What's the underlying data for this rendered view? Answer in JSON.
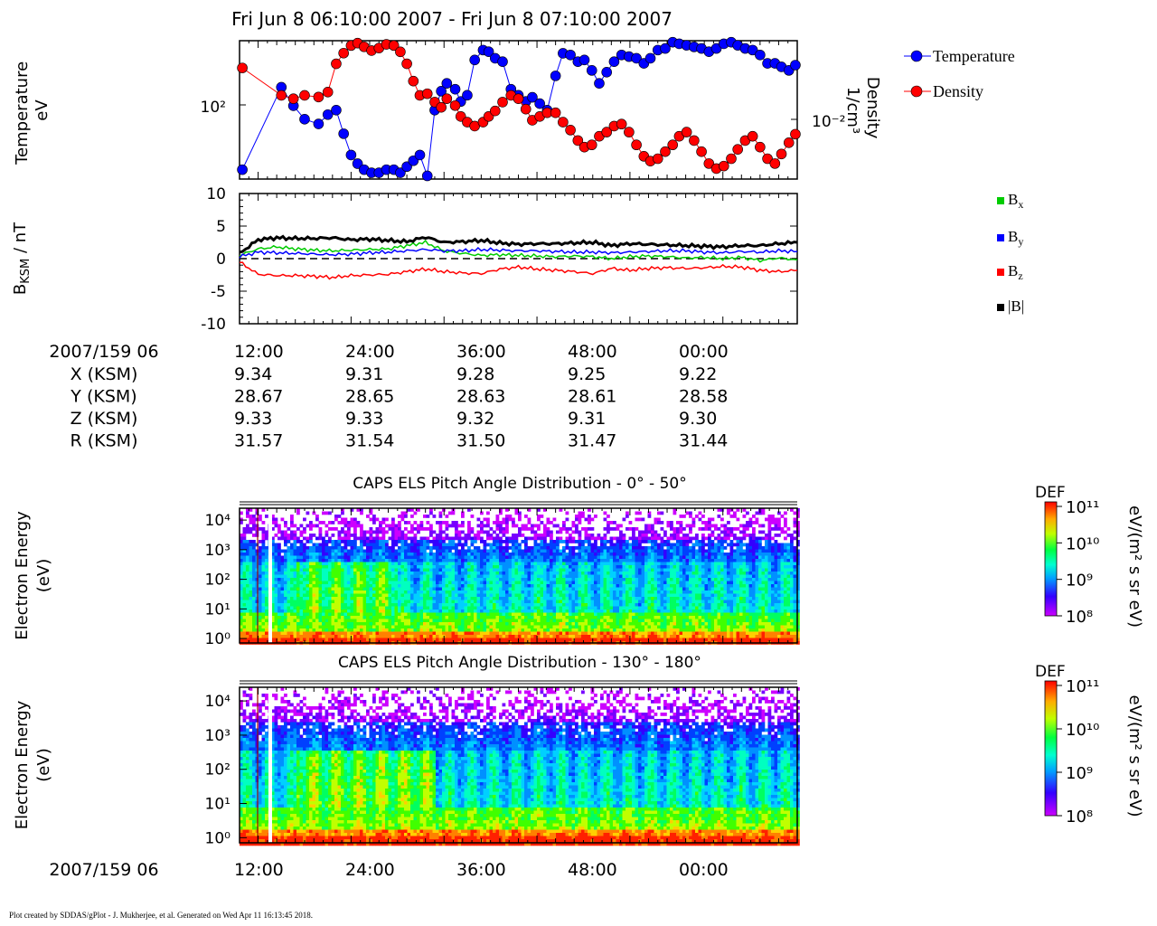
{
  "header": {
    "title": "Fri Jun 8 06:10:00 2007 - Fri Jun 8 07:10:00 2007"
  },
  "footer": {
    "text": "Plot created by SDDAS/gPlot - J. Mukherjee, et al.  Generated on Wed Apr 11 16:13:45 2018."
  },
  "ephemeris": {
    "epoch_label": "2007/159 06",
    "tick_labels": [
      "12:00",
      "24:00",
      "36:00",
      "48:00",
      "00:00"
    ],
    "rows": [
      {
        "label": "X (KSM)",
        "values": [
          "9.34",
          "9.31",
          "9.28",
          "9.25",
          "9.22"
        ]
      },
      {
        "label": "Y (KSM)",
        "values": [
          "28.67",
          "28.65",
          "28.63",
          "28.61",
          "28.58"
        ]
      },
      {
        "label": "Z (KSM)",
        "values": [
          "9.33",
          "9.33",
          "9.32",
          "9.31",
          "9.30"
        ]
      },
      {
        "label": "R (KSM)",
        "values": [
          "31.57",
          "31.54",
          "31.50",
          "31.47",
          "31.44"
        ]
      }
    ]
  },
  "bottom_axis": {
    "epoch_label": "2007/159 06",
    "tick_labels": [
      "12:00",
      "24:00",
      "36:00",
      "48:00",
      "00:00"
    ]
  },
  "colors": {
    "temperature": "#0000ff",
    "density": "#ff0000",
    "bx": "#00cc00",
    "by": "#0000ff",
    "bz": "#ff0000",
    "bmag": "#000000"
  },
  "chart_data": [
    {
      "type": "scatter",
      "panel": "plasma-moments",
      "ylabel_lines": [
        "Temperature",
        "eV"
      ],
      "y2label_lines": [
        "Density",
        "1/cm³"
      ],
      "y_scale": "log",
      "y_ticks": [
        {
          "value": 100,
          "label": "10²"
        }
      ],
      "y_range": [
        58,
        122
      ],
      "y2_scale": "log",
      "y2_ticks": [
        {
          "value": 0.01,
          "label": "10⁻²"
        }
      ],
      "y2_range": [
        0.0063,
        0.0142
      ],
      "x_range_minutes": [
        10,
        70
      ],
      "legend_position": "right",
      "series": [
        {
          "name": "Temperature",
          "x": [
            10.3,
            14.5,
            15.8,
            17.0,
            18.5,
            19.5,
            20.4,
            21.2,
            22.0,
            22.7,
            23.4,
            24.2,
            25.0,
            25.8,
            26.6,
            27.3,
            28.0,
            28.7,
            29.4,
            30.2,
            31.0,
            31.7,
            32.3,
            33.2,
            33.8,
            34.5,
            35.3,
            36.2,
            36.8,
            37.5,
            38.3,
            39.2,
            40.0,
            40.8,
            41.5,
            42.3,
            43.1,
            44.0,
            44.8,
            45.6,
            46.4,
            47.1,
            47.9,
            48.7,
            49.5,
            50.3,
            51.1,
            51.9,
            52.7,
            53.5,
            54.2,
            55.0,
            55.8,
            56.6,
            57.3,
            58.1,
            58.9,
            59.7,
            60.5,
            61.3,
            62.1,
            62.9,
            63.6,
            64.4,
            65.2,
            66.0,
            66.8,
            67.6,
            68.3,
            69.1,
            69.8
          ],
          "y": [
            61,
            95,
            86,
            80,
            78,
            82,
            84,
            74,
            66,
            63,
            61,
            60,
            60,
            61,
            61,
            60,
            62,
            64,
            66,
            59,
            84,
            93,
            97,
            94,
            88,
            91,
            110,
            116,
            115,
            111,
            109,
            94,
            91,
            88,
            90,
            87,
            84,
            101,
            114,
            113,
            109,
            110,
            104,
            97,
            103,
            109,
            113,
            112,
            111,
            108,
            111,
            116,
            117,
            121,
            120,
            119,
            118,
            117,
            115,
            117,
            120,
            121,
            119,
            117,
            116,
            113,
            108,
            108,
            106,
            104,
            107
          ]
        },
        {
          "name": "Density",
          "x": [
            10.3,
            14.5,
            15.8,
            17.0,
            18.5,
            19.5,
            20.4,
            21.2,
            22.0,
            22.7,
            23.4,
            24.2,
            25.0,
            25.8,
            26.6,
            27.3,
            28.0,
            28.7,
            29.4,
            30.2,
            31.0,
            31.7,
            32.3,
            33.2,
            33.8,
            34.5,
            35.3,
            36.2,
            36.8,
            37.5,
            38.3,
            39.2,
            40.0,
            40.8,
            41.5,
            42.3,
            43.1,
            44.0,
            44.8,
            45.6,
            46.4,
            47.1,
            47.9,
            48.7,
            49.5,
            50.3,
            51.1,
            51.9,
            52.7,
            53.5,
            54.2,
            55.0,
            55.8,
            56.6,
            57.3,
            58.1,
            58.9,
            59.7,
            60.5,
            61.3,
            62.1,
            62.9,
            63.6,
            64.4,
            65.2,
            66.0,
            66.8,
            67.6,
            68.3,
            69.1,
            69.8
          ],
          "y": [
            0.0121,
            0.0103,
            0.0101,
            0.0103,
            0.0102,
            0.0105,
            0.0124,
            0.0132,
            0.0138,
            0.014,
            0.0137,
            0.0134,
            0.0136,
            0.0139,
            0.0138,
            0.0133,
            0.0124,
            0.0112,
            0.0103,
            0.0104,
            0.0099,
            0.0096,
            0.0101,
            0.0097,
            0.0091,
            0.0088,
            0.0086,
            0.0088,
            0.0091,
            0.0094,
            0.0099,
            0.0103,
            0.0101,
            0.0095,
            0.0089,
            0.0091,
            0.0093,
            0.0093,
            0.0088,
            0.0084,
            0.0079,
            0.0076,
            0.0077,
            0.0081,
            0.0083,
            0.0086,
            0.0087,
            0.0083,
            0.0077,
            0.0072,
            0.007,
            0.0071,
            0.0074,
            0.0077,
            0.0081,
            0.0083,
            0.0079,
            0.0074,
            0.0069,
            0.0067,
            0.0068,
            0.0071,
            0.0075,
            0.0079,
            0.0081,
            0.0076,
            0.0071,
            0.0069,
            0.0073,
            0.0078,
            0.0082
          ]
        }
      ]
    },
    {
      "type": "line",
      "panel": "magnetic-field",
      "ylabel": "B",
      "ylabel_sub": "KSM",
      "ylabel_suffix": " / nT",
      "ylim": [
        -10,
        10
      ],
      "y_ticks": [
        10,
        5,
        0,
        -5,
        -10
      ],
      "zero_line": true,
      "x_range_minutes": [
        10,
        70
      ],
      "legend_position": "right",
      "series": [
        {
          "name": "B",
          "name_sub": "x",
          "x": [
            10,
            12,
            14,
            16,
            18,
            20,
            22,
            24,
            26,
            28,
            30,
            32,
            34,
            36,
            38,
            40,
            42,
            44,
            46,
            48,
            50,
            52,
            54,
            56,
            58,
            60,
            62,
            64,
            66,
            68,
            70
          ],
          "y": [
            0.5,
            1.5,
            1.8,
            1.5,
            1.3,
            1.2,
            1.3,
            1.4,
            1.5,
            2.0,
            2.5,
            1.2,
            0.8,
            0.5,
            0.6,
            0.5,
            0.4,
            0.3,
            0.4,
            0.3,
            0.0,
            0.3,
            0.4,
            0.3,
            0.1,
            0.2,
            0.0,
            0.2,
            -0.3,
            0.1,
            -0.2
          ]
        },
        {
          "name": "B",
          "name_sub": "y",
          "x": [
            10,
            12,
            14,
            16,
            18,
            20,
            22,
            24,
            26,
            28,
            30,
            32,
            34,
            36,
            38,
            40,
            42,
            44,
            46,
            48,
            50,
            52,
            54,
            56,
            58,
            60,
            62,
            64,
            66,
            68,
            70
          ],
          "y": [
            0.3,
            1.0,
            0.9,
            0.8,
            0.7,
            0.6,
            0.7,
            0.9,
            1.0,
            1.2,
            1.4,
            1.2,
            1.2,
            1.4,
            1.3,
            1.2,
            1.2,
            1.1,
            1.0,
            1.0,
            0.9,
            1.0,
            1.1,
            1.2,
            1.2,
            1.0,
            0.9,
            1.1,
            1.0,
            1.2,
            1.1
          ]
        },
        {
          "name": "B",
          "name_sub": "z",
          "x": [
            10,
            12,
            14,
            16,
            18,
            20,
            22,
            24,
            26,
            28,
            30,
            32,
            34,
            36,
            38,
            40,
            42,
            44,
            46,
            48,
            50,
            52,
            54,
            56,
            58,
            60,
            62,
            64,
            66,
            68,
            70
          ],
          "y": [
            -0.5,
            -2.4,
            -2.6,
            -2.6,
            -2.7,
            -2.9,
            -2.6,
            -2.5,
            -2.4,
            -2.0,
            -1.6,
            -2.0,
            -2.2,
            -2.3,
            -1.6,
            -1.3,
            -1.6,
            -1.8,
            -2.0,
            -2.3,
            -1.5,
            -1.8,
            -1.5,
            -1.4,
            -1.5,
            -1.4,
            -1.2,
            -1.3,
            -1.8,
            -2.0,
            -1.8
          ]
        },
        {
          "name": "|B|",
          "name_sub": "",
          "x": [
            10,
            12,
            14,
            16,
            18,
            20,
            22,
            24,
            26,
            28,
            30,
            32,
            34,
            36,
            38,
            40,
            42,
            44,
            46,
            48,
            50,
            52,
            54,
            56,
            58,
            60,
            62,
            64,
            66,
            68,
            70
          ],
          "y": [
            0.8,
            2.9,
            3.2,
            3.1,
            3.1,
            3.2,
            2.9,
            3.0,
            2.8,
            2.6,
            3.3,
            2.5,
            2.6,
            2.8,
            2.4,
            2.2,
            2.3,
            2.3,
            2.4,
            2.5,
            2.0,
            2.3,
            2.2,
            2.1,
            2.0,
            1.9,
            1.8,
            2.0,
            2.0,
            2.3,
            2.5
          ]
        }
      ]
    },
    {
      "type": "heatmap",
      "panel": "pitch-0-50",
      "title": "CAPS ELS Pitch Angle Distribution - 0° - 50°",
      "ylabel_lines": [
        "Electron Energy",
        "(eV)"
      ],
      "y_scale": "log",
      "y_ticks": [
        "10⁰",
        "10¹",
        "10²",
        "10³",
        "10⁴"
      ],
      "x_range_minutes": [
        10,
        70
      ],
      "colorbar": {
        "label": "DEF",
        "units": "eV/(m² s sr eV)",
        "ticks": [
          "10¹¹",
          "10¹⁰",
          "10⁹",
          "10⁸"
        ]
      }
    },
    {
      "type": "heatmap",
      "panel": "pitch-130-180",
      "title": "CAPS ELS Pitch Angle Distribution - 130° - 180°",
      "ylabel_lines": [
        "Electron Energy",
        "(eV)"
      ],
      "y_scale": "log",
      "y_ticks": [
        "10⁰",
        "10¹",
        "10²",
        "10³",
        "10⁴"
      ],
      "x_range_minutes": [
        10,
        70
      ],
      "colorbar": {
        "label": "DEF",
        "units": "eV/(m² s sr eV)",
        "ticks": [
          "10¹¹",
          "10¹⁰",
          "10⁹",
          "10⁸"
        ]
      }
    }
  ]
}
